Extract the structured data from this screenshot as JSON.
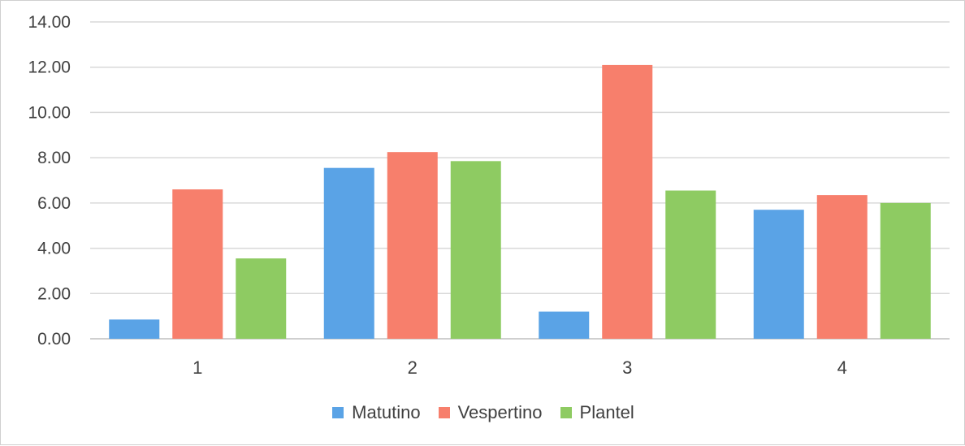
{
  "chart_data": {
    "type": "bar",
    "categories": [
      "1",
      "2",
      "3",
      "4"
    ],
    "series": [
      {
        "name": "Matutino",
        "color": "#5aa3e6",
        "values": [
          0.85,
          7.55,
          1.2,
          5.7
        ]
      },
      {
        "name": "Vespertino",
        "color": "#f77f6c",
        "values": [
          6.6,
          8.25,
          12.1,
          6.35
        ]
      },
      {
        "name": "Plantel",
        "color": "#8ecb62",
        "values": [
          3.55,
          7.85,
          6.55,
          6.0
        ]
      }
    ],
    "y_ticks": [
      "0.00",
      "2.00",
      "4.00",
      "6.00",
      "8.00",
      "10.00",
      "12.00",
      "14.00"
    ],
    "ylim": [
      0,
      14
    ],
    "grid": true,
    "legend_position": "bottom"
  }
}
